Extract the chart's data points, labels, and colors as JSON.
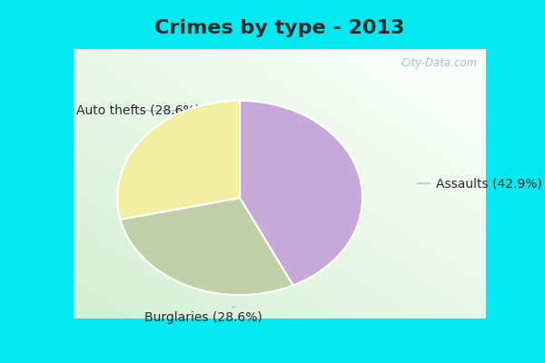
{
  "title": "Crimes by type - 2013",
  "slices": [
    {
      "label": "Assaults",
      "pct": 42.9,
      "color": "#c8a8d8"
    },
    {
      "label": "Burglaries",
      "pct": 28.6,
      "color": "#c0cfa8"
    },
    {
      "label": "Auto thefts",
      "pct": 28.6,
      "color": "#f0f0a0"
    }
  ],
  "border_color": "#00e8f0",
  "border_width": 8,
  "title_fontsize": 16,
  "label_fontsize": 10,
  "watermark": "City-Data.com",
  "figsize": [
    6.0,
    4.0
  ],
  "dpi": 100,
  "title_color": "#2a2a2a",
  "label_color": "#2a2a2a",
  "arrow_color": "#aaaacc"
}
